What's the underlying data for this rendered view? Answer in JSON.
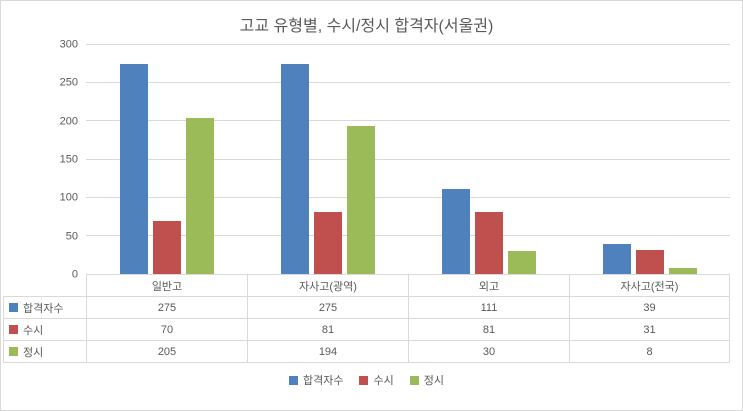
{
  "chart_data": {
    "type": "bar",
    "title": "고교 유형별, 수시/정시 합격자(서울권)",
    "categories": [
      "일반고",
      "자사고(광역)",
      "외고",
      "자사고(전국)"
    ],
    "series": [
      {
        "name": "합격자수",
        "color": "#4f81bd",
        "values": [
          275,
          275,
          111,
          39
        ]
      },
      {
        "name": "수시",
        "color": "#c0504d",
        "values": [
          70,
          81,
          81,
          31
        ]
      },
      {
        "name": "정시",
        "color": "#9bbb59",
        "values": [
          205,
          194,
          30,
          8
        ]
      }
    ],
    "ylim": [
      0,
      300
    ],
    "ytick_step": 50,
    "grid": true,
    "legend_position": "bottom",
    "data_table": true,
    "colors": {
      "axis_text": "#595959",
      "gridline": "#d9d9d9",
      "title_text": "#595959"
    }
  }
}
